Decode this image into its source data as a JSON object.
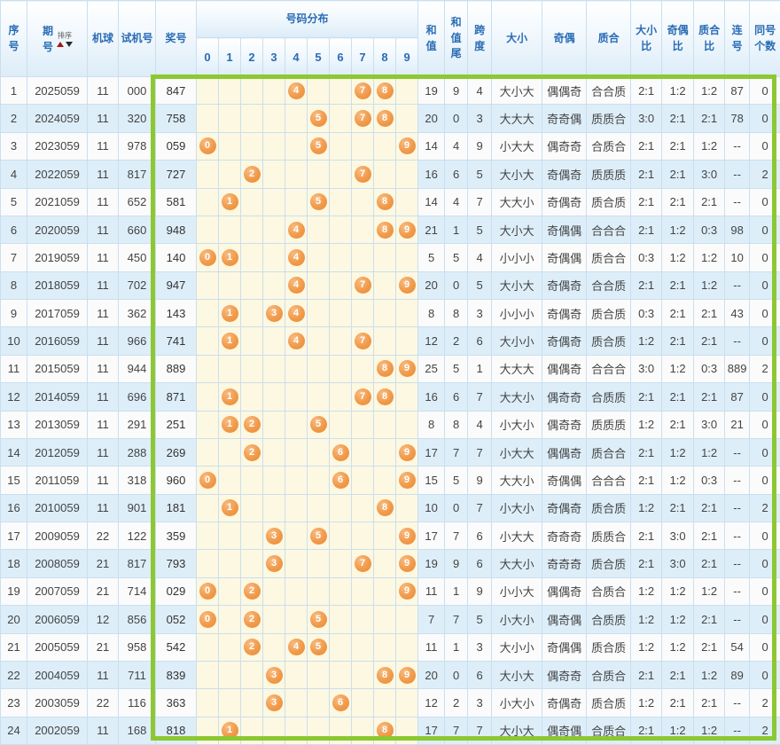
{
  "table": {
    "headers": {
      "seq": "序号",
      "period": "期号",
      "sort_label": "排序",
      "machine": "机球",
      "test": "试机号",
      "prize": "奖号",
      "distribution": "号码分布",
      "digits": [
        "0",
        "1",
        "2",
        "3",
        "4",
        "5",
        "6",
        "7",
        "8",
        "9"
      ],
      "sum": "和值",
      "sum_tail": "和值尾",
      "span": "跨度",
      "size": "大小",
      "parity": "奇偶",
      "prime": "质合",
      "size_ratio": "大小比",
      "parity_ratio": "奇偶比",
      "prime_ratio": "质合比",
      "consecutive": "连号",
      "same_count": "同号个数"
    },
    "rows": [
      {
        "seq": "1",
        "period": "2025059",
        "machine": "11",
        "test": "000",
        "prize": "847",
        "balls": [
          4,
          7,
          8
        ],
        "sum": "19",
        "tail": "9",
        "span": "4",
        "size": "大小大",
        "parity": "偶偶奇",
        "prime": "合合质",
        "sratio": "2:1",
        "pratio": "1:2",
        "qratio": "1:2",
        "consec": "87",
        "same": "0"
      },
      {
        "seq": "2",
        "period": "2024059",
        "machine": "11",
        "test": "320",
        "prize": "758",
        "balls": [
          5,
          7,
          8
        ],
        "sum": "20",
        "tail": "0",
        "span": "3",
        "size": "大大大",
        "parity": "奇奇偶",
        "prime": "质质合",
        "sratio": "3:0",
        "pratio": "2:1",
        "qratio": "2:1",
        "consec": "78",
        "same": "0"
      },
      {
        "seq": "3",
        "period": "2023059",
        "machine": "11",
        "test": "978",
        "prize": "059",
        "balls": [
          0,
          5,
          9
        ],
        "sum": "14",
        "tail": "4",
        "span": "9",
        "size": "小大大",
        "parity": "偶奇奇",
        "prime": "合质合",
        "sratio": "2:1",
        "pratio": "2:1",
        "qratio": "1:2",
        "consec": "--",
        "same": "0"
      },
      {
        "seq": "4",
        "period": "2022059",
        "machine": "11",
        "test": "817",
        "prize": "727",
        "balls": [
          2,
          7
        ],
        "sum": "16",
        "tail": "6",
        "span": "5",
        "size": "大小大",
        "parity": "奇偶奇",
        "prime": "质质质",
        "sratio": "2:1",
        "pratio": "2:1",
        "qratio": "3:0",
        "consec": "--",
        "same": "2"
      },
      {
        "seq": "5",
        "period": "2021059",
        "machine": "11",
        "test": "652",
        "prize": "581",
        "balls": [
          1,
          5,
          8
        ],
        "sum": "14",
        "tail": "4",
        "span": "7",
        "size": "大大小",
        "parity": "奇偶奇",
        "prime": "质合质",
        "sratio": "2:1",
        "pratio": "2:1",
        "qratio": "2:1",
        "consec": "--",
        "same": "0"
      },
      {
        "seq": "6",
        "period": "2020059",
        "machine": "11",
        "test": "660",
        "prize": "948",
        "balls": [
          4,
          8,
          9
        ],
        "sum": "21",
        "tail": "1",
        "span": "5",
        "size": "大小大",
        "parity": "奇偶偶",
        "prime": "合合合",
        "sratio": "2:1",
        "pratio": "1:2",
        "qratio": "0:3",
        "consec": "98",
        "same": "0"
      },
      {
        "seq": "7",
        "period": "2019059",
        "machine": "11",
        "test": "450",
        "prize": "140",
        "balls": [
          0,
          1,
          4
        ],
        "sum": "5",
        "tail": "5",
        "span": "4",
        "size": "小小小",
        "parity": "奇偶偶",
        "prime": "质合合",
        "sratio": "0:3",
        "pratio": "1:2",
        "qratio": "1:2",
        "consec": "10",
        "same": "0"
      },
      {
        "seq": "8",
        "period": "2018059",
        "machine": "11",
        "test": "702",
        "prize": "947",
        "balls": [
          4,
          7,
          9
        ],
        "sum": "20",
        "tail": "0",
        "span": "5",
        "size": "大小大",
        "parity": "奇偶奇",
        "prime": "合合质",
        "sratio": "2:1",
        "pratio": "2:1",
        "qratio": "1:2",
        "consec": "--",
        "same": "0"
      },
      {
        "seq": "9",
        "period": "2017059",
        "machine": "11",
        "test": "362",
        "prize": "143",
        "balls": [
          1,
          3,
          4
        ],
        "sum": "8",
        "tail": "8",
        "span": "3",
        "size": "小小小",
        "parity": "奇偶奇",
        "prime": "质合质",
        "sratio": "0:3",
        "pratio": "2:1",
        "qratio": "2:1",
        "consec": "43",
        "same": "0"
      },
      {
        "seq": "10",
        "period": "2016059",
        "machine": "11",
        "test": "966",
        "prize": "741",
        "balls": [
          1,
          4,
          7
        ],
        "sum": "12",
        "tail": "2",
        "span": "6",
        "size": "大小小",
        "parity": "奇偶奇",
        "prime": "质合质",
        "sratio": "1:2",
        "pratio": "2:1",
        "qratio": "2:1",
        "consec": "--",
        "same": "0"
      },
      {
        "seq": "11",
        "period": "2015059",
        "machine": "11",
        "test": "944",
        "prize": "889",
        "balls": [
          8,
          9
        ],
        "sum": "25",
        "tail": "5",
        "span": "1",
        "size": "大大大",
        "parity": "偶偶奇",
        "prime": "合合合",
        "sratio": "3:0",
        "pratio": "1:2",
        "qratio": "0:3",
        "consec": "889",
        "same": "2"
      },
      {
        "seq": "12",
        "period": "2014059",
        "machine": "11",
        "test": "696",
        "prize": "871",
        "balls": [
          1,
          7,
          8
        ],
        "sum": "16",
        "tail": "6",
        "span": "7",
        "size": "大大小",
        "parity": "偶奇奇",
        "prime": "合质质",
        "sratio": "2:1",
        "pratio": "2:1",
        "qratio": "2:1",
        "consec": "87",
        "same": "0"
      },
      {
        "seq": "13",
        "period": "2013059",
        "machine": "11",
        "test": "291",
        "prize": "251",
        "balls": [
          1,
          2,
          5
        ],
        "sum": "8",
        "tail": "8",
        "span": "4",
        "size": "小大小",
        "parity": "偶奇奇",
        "prime": "质质质",
        "sratio": "1:2",
        "pratio": "2:1",
        "qratio": "3:0",
        "consec": "21",
        "same": "0"
      },
      {
        "seq": "14",
        "period": "2012059",
        "machine": "11",
        "test": "288",
        "prize": "269",
        "balls": [
          2,
          6,
          9
        ],
        "sum": "17",
        "tail": "7",
        "span": "7",
        "size": "小大大",
        "parity": "偶偶奇",
        "prime": "质合合",
        "sratio": "2:1",
        "pratio": "1:2",
        "qratio": "1:2",
        "consec": "--",
        "same": "0"
      },
      {
        "seq": "15",
        "period": "2011059",
        "machine": "11",
        "test": "318",
        "prize": "960",
        "balls": [
          0,
          6,
          9
        ],
        "sum": "15",
        "tail": "5",
        "span": "9",
        "size": "大大小",
        "parity": "奇偶偶",
        "prime": "合合合",
        "sratio": "2:1",
        "pratio": "1:2",
        "qratio": "0:3",
        "consec": "--",
        "same": "0"
      },
      {
        "seq": "16",
        "period": "2010059",
        "machine": "11",
        "test": "901",
        "prize": "181",
        "balls": [
          1,
          8
        ],
        "sum": "10",
        "tail": "0",
        "span": "7",
        "size": "小大小",
        "parity": "奇偶奇",
        "prime": "质合质",
        "sratio": "1:2",
        "pratio": "2:1",
        "qratio": "2:1",
        "consec": "--",
        "same": "2"
      },
      {
        "seq": "17",
        "period": "2009059",
        "machine": "22",
        "test": "122",
        "prize": "359",
        "balls": [
          3,
          5,
          9
        ],
        "sum": "17",
        "tail": "7",
        "span": "6",
        "size": "小大大",
        "parity": "奇奇奇",
        "prime": "质质合",
        "sratio": "2:1",
        "pratio": "3:0",
        "qratio": "2:1",
        "consec": "--",
        "same": "0"
      },
      {
        "seq": "18",
        "period": "2008059",
        "machine": "21",
        "test": "817",
        "prize": "793",
        "balls": [
          3,
          7,
          9
        ],
        "sum": "19",
        "tail": "9",
        "span": "6",
        "size": "大大小",
        "parity": "奇奇奇",
        "prime": "质合质",
        "sratio": "2:1",
        "pratio": "3:0",
        "qratio": "2:1",
        "consec": "--",
        "same": "0"
      },
      {
        "seq": "19",
        "period": "2007059",
        "machine": "21",
        "test": "714",
        "prize": "029",
        "balls": [
          0,
          2,
          9
        ],
        "sum": "11",
        "tail": "1",
        "span": "9",
        "size": "小小大",
        "parity": "偶偶奇",
        "prime": "合质合",
        "sratio": "1:2",
        "pratio": "1:2",
        "qratio": "1:2",
        "consec": "--",
        "same": "0"
      },
      {
        "seq": "20",
        "period": "2006059",
        "machine": "12",
        "test": "856",
        "prize": "052",
        "balls": [
          0,
          2,
          5
        ],
        "sum": "7",
        "tail": "7",
        "span": "5",
        "size": "小大小",
        "parity": "偶奇偶",
        "prime": "合质质",
        "sratio": "1:2",
        "pratio": "1:2",
        "qratio": "2:1",
        "consec": "--",
        "same": "0"
      },
      {
        "seq": "21",
        "period": "2005059",
        "machine": "21",
        "test": "958",
        "prize": "542",
        "balls": [
          2,
          4,
          5
        ],
        "sum": "11",
        "tail": "1",
        "span": "3",
        "size": "大小小",
        "parity": "奇偶偶",
        "prime": "质合质",
        "sratio": "1:2",
        "pratio": "1:2",
        "qratio": "2:1",
        "consec": "54",
        "same": "0"
      },
      {
        "seq": "22",
        "period": "2004059",
        "machine": "11",
        "test": "711",
        "prize": "839",
        "balls": [
          3,
          8,
          9
        ],
        "sum": "20",
        "tail": "0",
        "span": "6",
        "size": "大小大",
        "parity": "偶奇奇",
        "prime": "合质合",
        "sratio": "2:1",
        "pratio": "2:1",
        "qratio": "1:2",
        "consec": "89",
        "same": "0"
      },
      {
        "seq": "23",
        "period": "2003059",
        "machine": "22",
        "test": "116",
        "prize": "363",
        "balls": [
          3,
          6
        ],
        "sum": "12",
        "tail": "2",
        "span": "3",
        "size": "小大小",
        "parity": "奇偶奇",
        "prime": "质合质",
        "sratio": "1:2",
        "pratio": "2:1",
        "qratio": "2:1",
        "consec": "--",
        "same": "2"
      },
      {
        "seq": "24",
        "period": "2002059",
        "machine": "11",
        "test": "168",
        "prize": "818",
        "balls": [
          1,
          8
        ],
        "sum": "17",
        "tail": "7",
        "span": "7",
        "size": "大小大",
        "parity": "偶奇偶",
        "prime": "合质合",
        "sratio": "2:1",
        "pratio": "1:2",
        "qratio": "1:2",
        "consec": "--",
        "same": "2"
      }
    ]
  },
  "colors": {
    "header_text": "#2a6cb5",
    "grid_border": "#c9dfef",
    "even_row_bg": "#ddeef9",
    "ball_area_bg": "#fdf8e1",
    "ball_orange": "#ee9240",
    "highlight_frame_green": "#8cc832",
    "sort_up_red": "#a21a12",
    "sort_down_dark": "#2b2b2b"
  }
}
